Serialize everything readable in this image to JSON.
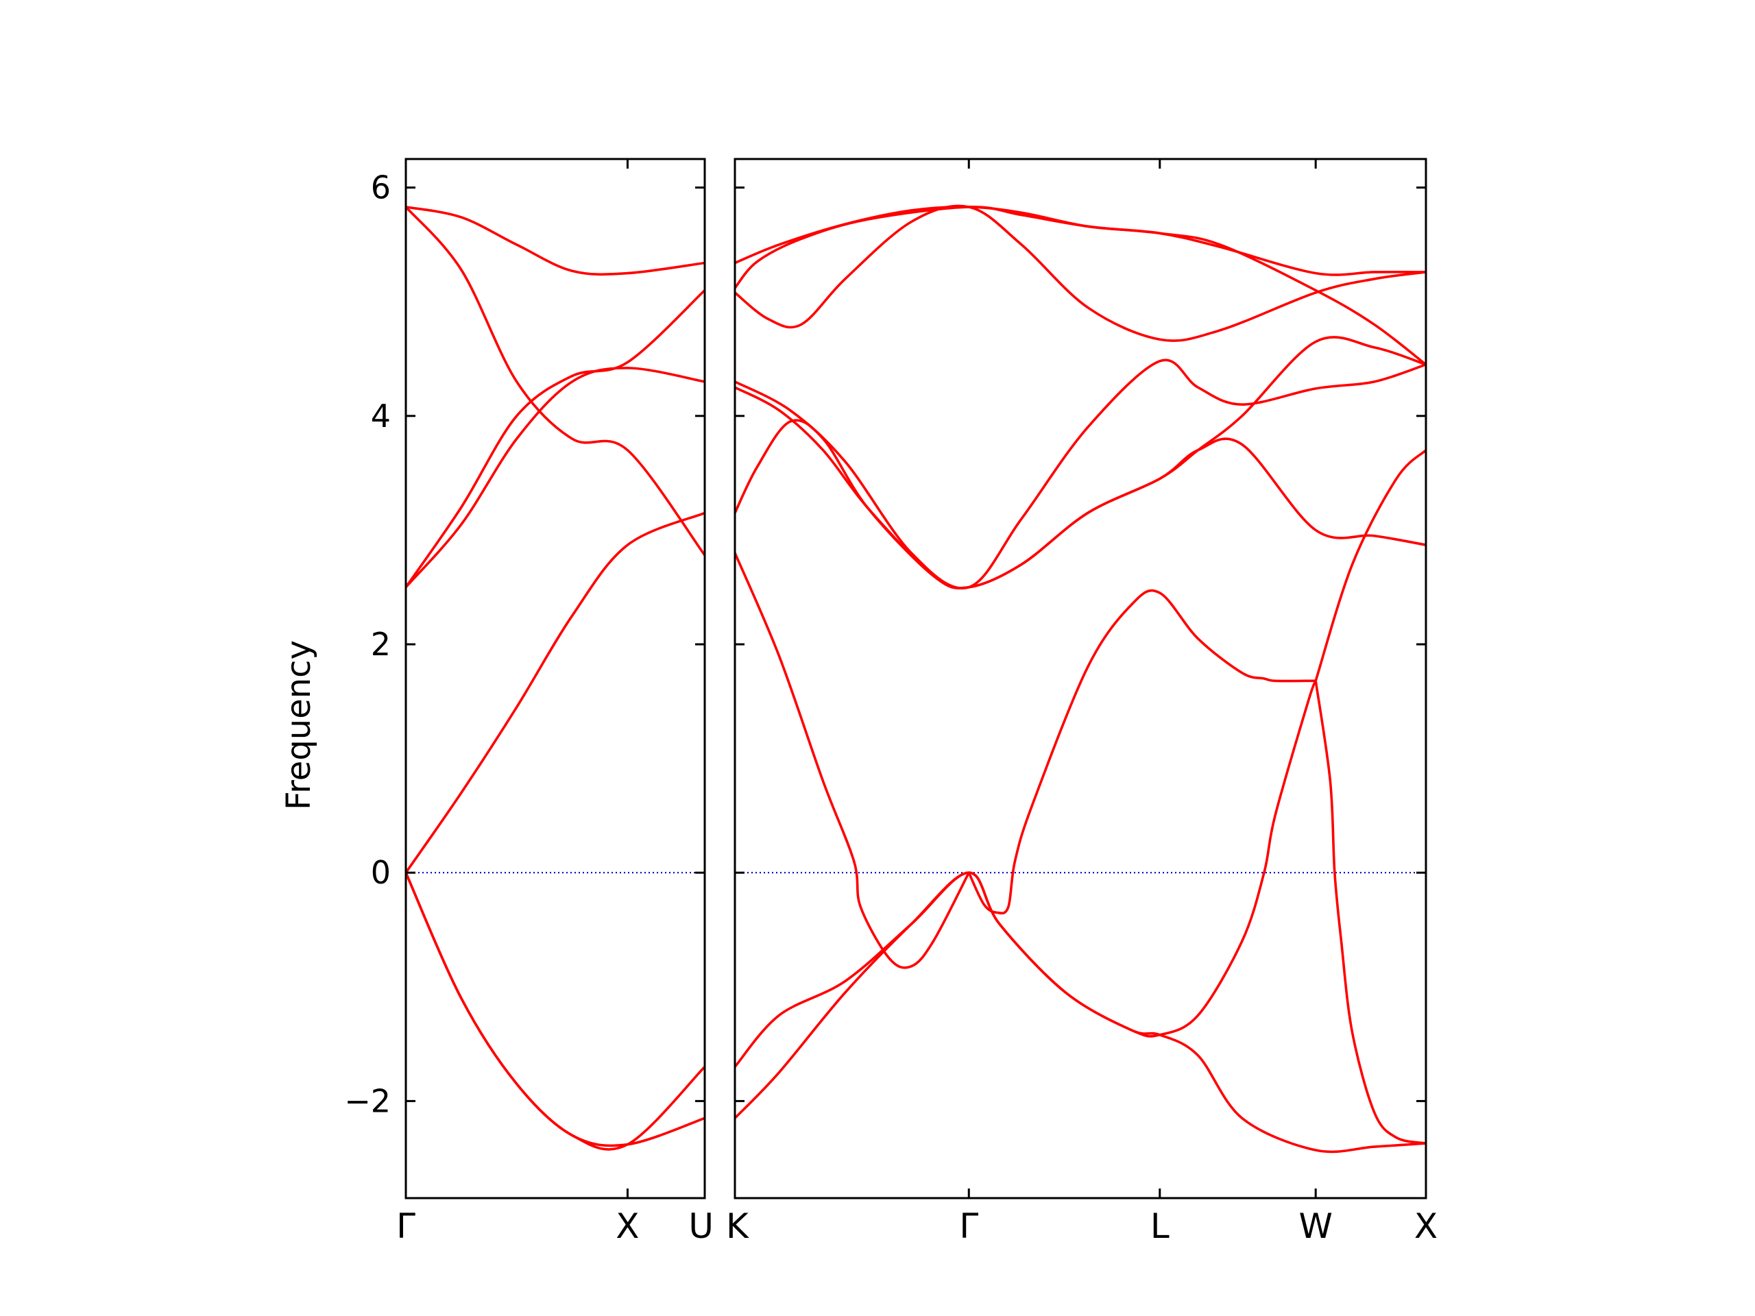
{
  "chart_data": {
    "type": "line",
    "title": "",
    "xlabel": "",
    "ylabel": "Frequency",
    "ylim": [
      -2.85,
      6.25
    ],
    "yticks": [
      -2,
      0,
      2,
      4,
      6
    ],
    "ytick_labels": [
      "−2",
      "0",
      "2",
      "4",
      "6"
    ],
    "grid": false,
    "zero_line": {
      "y": 0,
      "color": "#0000cc",
      "style": "dotted"
    },
    "line_color": "#ff0000",
    "panels": [
      {
        "name": "Gamma-X-U",
        "xlim": [
          0,
          1.348
        ],
        "ticks": [
          {
            "x": 0,
            "label": "Γ"
          },
          {
            "x": 1.0,
            "label": "X"
          },
          {
            "x": 1.348,
            "label": "U"
          }
        ],
        "series": [
          {
            "x": [
              0,
              0.25,
              0.5,
              0.75,
              1.0,
              1.348
            ],
            "y": [
              5.83,
              5.74,
              5.5,
              5.27,
              5.25,
              5.34
            ]
          },
          {
            "x": [
              0,
              0.25,
              0.5,
              0.75,
              1.0,
              1.348
            ],
            "y": [
              5.83,
              5.28,
              4.3,
              3.8,
              3.7,
              2.78
            ]
          },
          {
            "x": [
              0,
              0.25,
              0.5,
              0.75,
              1.0,
              1.348
            ],
            "y": [
              2.5,
              3.2,
              4.0,
              4.35,
              4.47,
              5.1
            ]
          },
          {
            "x": [
              0,
              0.25,
              0.5,
              0.75,
              1.0,
              1.348
            ],
            "y": [
              2.5,
              3.05,
              3.8,
              4.3,
              4.42,
              4.3
            ]
          },
          {
            "x": [
              0,
              0.25,
              0.5,
              0.75,
              1.0,
              1.348
            ],
            "y": [
              0.0,
              0.7,
              1.45,
              2.25,
              2.87,
              3.15
            ]
          },
          {
            "x": [
              0,
              0.25,
              0.5,
              0.75,
              1.0,
              1.348
            ],
            "y": [
              0.0,
              -1.1,
              -1.85,
              -2.3,
              -2.38,
              -1.7
            ]
          },
          {
            "x": [
              0,
              0.25,
              0.5,
              0.75,
              1.0,
              1.348
            ],
            "y": [
              0.0,
              -1.1,
              -1.85,
              -2.3,
              -2.38,
              -2.15
            ]
          }
        ]
      },
      {
        "name": "K-Gamma-L-W-X",
        "xlim": [
          0,
          3.134
        ],
        "ticks": [
          {
            "x": 0,
            "label": "K"
          },
          {
            "x": 1.061,
            "label": "Γ"
          },
          {
            "x": 1.927,
            "label": "L"
          },
          {
            "x": 2.634,
            "label": "W"
          },
          {
            "x": 3.134,
            "label": "X"
          }
        ],
        "series": [
          {
            "x": [
              0,
              0.2,
              0.5,
              0.8,
              1.061,
              1.3,
              1.6,
              1.927,
              2.2,
              2.634,
              2.9,
              3.134
            ],
            "y": [
              5.34,
              5.5,
              5.68,
              5.8,
              5.83,
              5.78,
              5.66,
              5.6,
              5.48,
              5.25,
              5.26,
              5.26
            ]
          },
          {
            "x": [
              0,
              0.1,
              0.3,
              0.6,
              1.061,
              1.3,
              1.6,
              1.927,
              2.2,
              2.634,
              2.9,
              3.134
            ],
            "y": [
              5.12,
              5.35,
              5.55,
              5.72,
              5.83,
              5.76,
              5.66,
              5.6,
              5.5,
              5.1,
              4.8,
              4.45
            ]
          },
          {
            "x": [
              0,
              0.15,
              0.3,
              0.5,
              0.8,
              1.061,
              1.3,
              1.6,
              1.927,
              2.2,
              2.634,
              2.9,
              3.134
            ],
            "y": [
              5.08,
              4.85,
              4.8,
              5.2,
              5.7,
              5.83,
              5.5,
              4.95,
              4.67,
              4.75,
              5.08,
              5.2,
              5.26
            ]
          },
          {
            "x": [
              0,
              0.25,
              0.5,
              0.8,
              1.061,
              1.3,
              1.6,
              1.927,
              2.1,
              2.3,
              2.634,
              2.9,
              3.134
            ],
            "y": [
              4.3,
              4.05,
              3.6,
              2.8,
              2.5,
              3.1,
              3.9,
              4.48,
              4.25,
              4.1,
              4.24,
              4.3,
              4.45
            ]
          },
          {
            "x": [
              0,
              0.2,
              0.4,
              0.6,
              0.9,
              1.061,
              1.3,
              1.6,
              1.927,
              2.1,
              2.3,
              2.634,
              2.9,
              3.134
            ],
            "y": [
              4.25,
              4.05,
              3.7,
              3.2,
              2.6,
              2.5,
              2.7,
              3.15,
              3.45,
              3.7,
              4.0,
              4.65,
              4.6,
              4.45
            ]
          },
          {
            "x": [
              0,
              0.1,
              0.25,
              0.4,
              0.6,
              0.9,
              1.061,
              1.3,
              1.6,
              1.927,
              2.1,
              2.3,
              2.634,
              2.9,
              3.134
            ],
            "y": [
              3.15,
              3.55,
              3.95,
              3.8,
              3.2,
              2.6,
              2.5,
              2.7,
              3.15,
              3.45,
              3.7,
              3.75,
              3.0,
              2.95,
              2.87
            ]
          },
          {
            "x": [
              0,
              0.2,
              0.4,
              0.54,
              0.57,
              0.7,
              0.8,
              0.9,
              1.061
            ],
            "y": [
              2.8,
              1.9,
              0.8,
              0.1,
              -0.3,
              -0.75,
              -0.82,
              -0.6,
              0.0
            ]
          },
          {
            "x": [
              1.061,
              1.13,
              1.19,
              1.24,
              1.27,
              1.35,
              1.6,
              1.8,
              1.927,
              2.1,
              2.3,
              2.4,
              2.45,
              2.6,
              2.634
            ],
            "y": [
              0.0,
              -0.28,
              -0.35,
              -0.3,
              0.1,
              0.6,
              1.8,
              2.35,
              2.45,
              2.05,
              1.75,
              1.7,
              1.68,
              1.68,
              1.68
            ]
          },
          {
            "x": [
              0,
              0.2,
              0.5,
              0.8,
              1.061,
              1.2,
              1.5,
              1.8,
              1.927,
              2.1,
              2.3,
              2.4,
              2.45,
              2.6,
              2.634
            ],
            "y": [
              -1.7,
              -1.25,
              -0.95,
              -0.45,
              0.0,
              -0.45,
              -1.05,
              -1.38,
              -1.42,
              -1.25,
              -0.6,
              0.0,
              0.5,
              1.5,
              1.68
            ]
          },
          {
            "x": [
              0,
              0.2,
              0.5,
              0.8,
              1.061,
              1.2,
              1.5,
              1.8,
              1.927,
              2.1,
              2.3,
              2.634,
              2.9,
              3.134
            ],
            "y": [
              -2.15,
              -1.75,
              -1.05,
              -0.45,
              0.0,
              -0.45,
              -1.05,
              -1.38,
              -1.42,
              -1.6,
              -2.15,
              -2.43,
              -2.4,
              -2.37
            ]
          },
          {
            "x": [
              2.634,
              2.7,
              2.72,
              2.75,
              2.8,
              2.9,
              3.0,
              3.134
            ],
            "y": [
              1.68,
              0.8,
              0.0,
              -0.6,
              -1.4,
              -2.1,
              -2.32,
              -2.37
            ]
          },
          {
            "x": [
              2.634,
              2.8,
              3.0,
              3.134
            ],
            "y": [
              1.68,
              2.7,
              3.45,
              3.7
            ]
          }
        ]
      }
    ]
  }
}
